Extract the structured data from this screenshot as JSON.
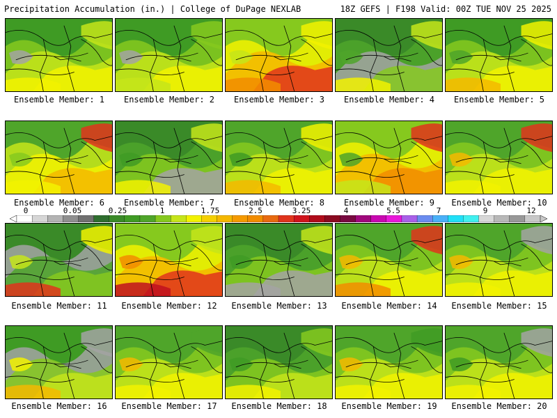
{
  "header": {
    "left": "Precipitation Accumulation (in.) | College of DuPage NEXLAB",
    "right": "18Z GEFS | F198 Valid: 00Z TUE NOV 25 2025"
  },
  "panels": [
    {
      "label": "Ensemble Member: 1",
      "base": "#3f9b24",
      "blobs": [
        [
          "#86c91e"
        ],
        [
          "#c6e51a"
        ],
        [
          "#f2f200"
        ],
        [
          "#a3a3a3"
        ],
        [
          "#c6e51a"
        ],
        [
          "#f2f200"
        ]
      ]
    },
    {
      "label": "Ensemble Member: 2",
      "base": "#3f9b24",
      "blobs": [
        [
          "#86c91e"
        ],
        [
          "#c6e51a"
        ],
        [
          "#f2f200"
        ],
        [
          "#a3a3a3"
        ],
        [
          "#86c91e"
        ],
        [
          "#c6e51a"
        ]
      ]
    },
    {
      "label": "Ensemble Member: 3",
      "base": "#86c91e",
      "blobs": [
        [
          "#f2f200"
        ],
        [
          "#f5b800"
        ],
        [
          "#e0341c"
        ],
        [
          "#c6e51a"
        ],
        [
          "#f2f200"
        ],
        [
          "#f28c00"
        ]
      ]
    },
    {
      "label": "Ensemble Member: 4",
      "base": "#3a8a28",
      "blobs": [
        [
          "#4fa52a"
        ],
        [
          "#a3a3a3"
        ],
        [
          "#86c91e"
        ],
        [
          "#4fa52a"
        ],
        [
          "#c6e51a"
        ],
        [
          "#f2f200"
        ]
      ]
    },
    {
      "label": "Ensemble Member: 5",
      "base": "#3f9b24",
      "blobs": [
        [
          "#86c91e"
        ],
        [
          "#c6e51a"
        ],
        [
          "#f2f200"
        ],
        [
          "#4fa52a"
        ],
        [
          "#f2f200"
        ],
        [
          "#f5b800"
        ]
      ]
    },
    {
      "label": "Ensemble Member: 6",
      "base": "#4fa52a",
      "blobs": [
        [
          "#c6e51a"
        ],
        [
          "#f2f200"
        ],
        [
          "#f5b800"
        ],
        [
          "#86c91e"
        ],
        [
          "#e0341c"
        ],
        [
          "#f2f200"
        ]
      ]
    },
    {
      "label": "Ensemble Member: 7",
      "base": "#3a8a28",
      "blobs": [
        [
          "#4fa52a"
        ],
        [
          "#86c91e"
        ],
        [
          "#a3a3a3"
        ],
        [
          "#3f9b24"
        ],
        [
          "#c6e51a"
        ],
        [
          "#f2f200"
        ]
      ]
    },
    {
      "label": "Ensemble Member: 8",
      "base": "#4fa52a",
      "blobs": [
        [
          "#86c91e"
        ],
        [
          "#c6e51a"
        ],
        [
          "#f2f200"
        ],
        [
          "#3f9b24"
        ],
        [
          "#f2f200"
        ],
        [
          "#f5b800"
        ]
      ]
    },
    {
      "label": "Ensemble Member: 9",
      "base": "#86c91e",
      "blobs": [
        [
          "#f2f200"
        ],
        [
          "#f5b800"
        ],
        [
          "#f28c00"
        ],
        [
          "#4fa52a"
        ],
        [
          "#e0341c"
        ],
        [
          "#c6e51a"
        ]
      ]
    },
    {
      "label": "Ensemble Member: 10",
      "base": "#4fa52a",
      "blobs": [
        [
          "#86c91e"
        ],
        [
          "#c6e51a"
        ],
        [
          "#f2f200"
        ],
        [
          "#f5b800"
        ],
        [
          "#e0341c"
        ],
        [
          "#f2f200"
        ]
      ]
    },
    {
      "label": "Ensemble Member: 11",
      "base": "#3a8a28",
      "blobs": [
        [
          "#a3a3a3"
        ],
        [
          "#4fa52a"
        ],
        [
          "#86c91e"
        ],
        [
          "#c6e51a"
        ],
        [
          "#f2f200"
        ],
        [
          "#e0341c"
        ]
      ]
    },
    {
      "label": "Ensemble Member: 12",
      "base": "#86c91e",
      "blobs": [
        [
          "#f2f200"
        ],
        [
          "#f5b800"
        ],
        [
          "#e0341c"
        ],
        [
          "#f28c00"
        ],
        [
          "#c6e51a"
        ],
        [
          "#c01020"
        ]
      ]
    },
    {
      "label": "Ensemble Member: 13",
      "base": "#3a8a28",
      "blobs": [
        [
          "#4fa52a"
        ],
        [
          "#86c91e"
        ],
        [
          "#a3a3a3"
        ],
        [
          "#3f9b24"
        ],
        [
          "#c6e51a"
        ],
        [
          "#a3a3a3"
        ]
      ]
    },
    {
      "label": "Ensemble Member: 14",
      "base": "#4fa52a",
      "blobs": [
        [
          "#86c91e"
        ],
        [
          "#c6e51a"
        ],
        [
          "#f2f200"
        ],
        [
          "#f5b800"
        ],
        [
          "#e0341c"
        ],
        [
          "#f28c00"
        ]
      ]
    },
    {
      "label": "Ensemble Member: 15",
      "base": "#4fa52a",
      "blobs": [
        [
          "#86c91e"
        ],
        [
          "#c6e51a"
        ],
        [
          "#f2f200"
        ],
        [
          "#f5b800"
        ],
        [
          "#a3a3a3"
        ],
        [
          "#f2f200"
        ]
      ]
    },
    {
      "label": "Ensemble Member: 16",
      "base": "#3f9b24",
      "blobs": [
        [
          "#a3a3a3"
        ],
        [
          "#86c91e"
        ],
        [
          "#c6e51a"
        ],
        [
          "#f2f200"
        ],
        [
          "#a3a3a3"
        ],
        [
          "#f5b800"
        ]
      ]
    },
    {
      "label": "Ensemble Member: 17",
      "base": "#4fa52a",
      "blobs": [
        [
          "#86c91e"
        ],
        [
          "#c6e51a"
        ],
        [
          "#f2f200"
        ],
        [
          "#f5b800"
        ],
        [
          "#4fa52a"
        ],
        [
          "#f2f200"
        ]
      ]
    },
    {
      "label": "Ensemble Member: 18",
      "base": "#3a8a28",
      "blobs": [
        [
          "#4fa52a"
        ],
        [
          "#86c91e"
        ],
        [
          "#c6e51a"
        ],
        [
          "#3f9b24"
        ],
        [
          "#86c91e"
        ],
        [
          "#f2f200"
        ]
      ]
    },
    {
      "label": "Ensemble Member: 19",
      "base": "#4fa52a",
      "blobs": [
        [
          "#86c91e"
        ],
        [
          "#c6e51a"
        ],
        [
          "#f2f200"
        ],
        [
          "#f5b800"
        ],
        [
          "#3f9b24"
        ],
        [
          "#f2f200"
        ]
      ]
    },
    {
      "label": "Ensemble Member: 20",
      "base": "#4fa52a",
      "blobs": [
        [
          "#86c91e"
        ],
        [
          "#c6e51a"
        ],
        [
          "#f2f200"
        ],
        [
          "#3f9b24"
        ],
        [
          "#a3a3a3"
        ],
        [
          "#f2f200"
        ]
      ]
    }
  ],
  "colorbar": {
    "tick_labels": [
      "0",
      "0.05",
      "0.25",
      "1",
      "1.75",
      "2.5",
      "3.25",
      "4",
      "5.5",
      "7",
      "9",
      "12"
    ],
    "colors": [
      "#ffffff",
      "#d6d6d6",
      "#b3b3b3",
      "#8f8f8f",
      "#707070",
      "#2f6e2f",
      "#3a8a28",
      "#3f9b24",
      "#4fa52a",
      "#86c91e",
      "#c6e51a",
      "#f2f200",
      "#f5d000",
      "#f5b800",
      "#f59a00",
      "#f28c00",
      "#e86a10",
      "#e0341c",
      "#d0141c",
      "#b00c1a",
      "#8a0a20",
      "#780a40",
      "#a0087c",
      "#c808b0",
      "#e818d8",
      "#a860e8",
      "#6a8cf0",
      "#4ab0f8",
      "#20e0f8",
      "#40f0f0",
      "#d8d8d8",
      "#b8b8b8",
      "#989898",
      "#c8c8c8"
    ]
  }
}
